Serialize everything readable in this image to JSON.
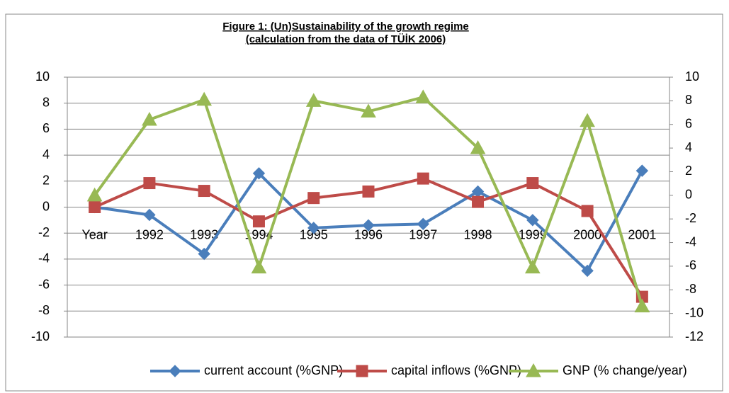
{
  "chart_data": {
    "type": "line",
    "title": "Figure 1: (Un)Sustainability of the growth regime",
    "subtitle": "(calculation from the data of TÜİK 2006)",
    "categories": [
      "Year",
      "1992",
      "1993",
      "1994",
      "1995",
      "1996",
      "1997",
      "1998",
      "1999",
      "2000",
      "2001"
    ],
    "series": [
      {
        "name": "current account (%GNP)",
        "color": "#4a7ebb",
        "marker": "diamond",
        "values": [
          0,
          -0.6,
          -3.6,
          2.6,
          -1.6,
          -1.4,
          -1.3,
          1.2,
          -1.0,
          -4.9,
          2.8
        ]
      },
      {
        "name": "capital inflows (%GNP)",
        "color": "#be4b48",
        "marker": "square",
        "values": [
          0,
          1.85,
          1.25,
          -1.1,
          0.7,
          1.2,
          2.2,
          0.4,
          1.85,
          -0.3,
          -6.9
        ]
      },
      {
        "name": "GNP (% change/year)",
        "color": "#98b954",
        "marker": "triangle",
        "axis": "y2",
        "values": [
          0,
          6.4,
          8.1,
          -6.1,
          8.0,
          7.1,
          8.3,
          4.0,
          -6.1,
          6.3,
          -9.4
        ]
      }
    ],
    "ylim": [
      -10,
      10
    ],
    "yticks": [
      -10,
      -8,
      -6,
      -4,
      -2,
      0,
      2,
      4,
      6,
      8,
      10
    ],
    "y2lim": [
      -12,
      10
    ],
    "y2ticks": [
      -12,
      -10,
      -8,
      -6,
      -4,
      -2,
      0,
      2,
      4,
      6,
      8,
      10
    ],
    "grid": true,
    "legend": "bottom"
  }
}
